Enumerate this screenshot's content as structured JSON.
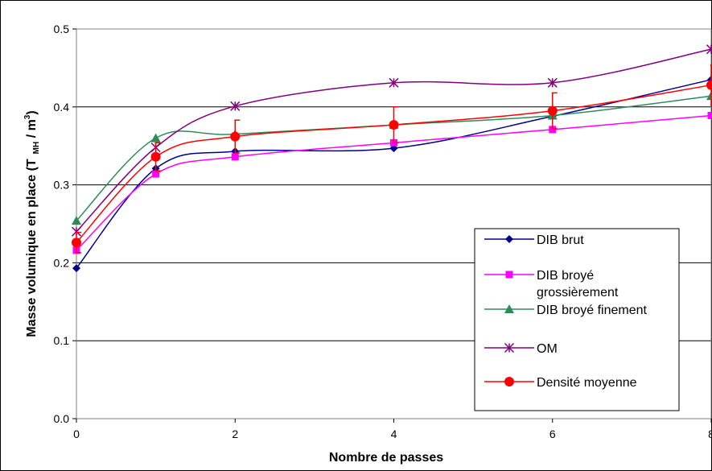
{
  "chart_data": {
    "type": "line",
    "title": "",
    "xlabel": "Nombre de passes",
    "ylabel_main": "Masse volumique en place (T",
    "ylabel_sub": "MH",
    "ylabel_tail": " / m",
    "ylabel_sup": "3",
    "ylabel_close": ")",
    "xlim": [
      0,
      8
    ],
    "ylim": [
      0.0,
      0.5
    ],
    "x_ticks": [
      "0",
      "2",
      "4",
      "6",
      "8"
    ],
    "x_tick_values": [
      0,
      2,
      4,
      6,
      8
    ],
    "y_ticks": [
      "0.0",
      "0.1",
      "0.2",
      "0.3",
      "0.4",
      "0.5"
    ],
    "y_tick_values": [
      0.0,
      0.1,
      0.2,
      0.3,
      0.4,
      0.5
    ],
    "grid": "horizontal",
    "legend_position": "right",
    "x": [
      0,
      1,
      2,
      4,
      6,
      8
    ],
    "series": [
      {
        "name": "DIB brut",
        "color": "#00008B",
        "marker": "diamond",
        "values": [
          0.193,
          0.321,
          0.343,
          0.347,
          0.388,
          0.435
        ]
      },
      {
        "name": "DIB broyé grossièrement",
        "color": "#FF00FF",
        "marker": "square",
        "values": [
          0.216,
          0.314,
          0.336,
          0.354,
          0.371,
          0.389
        ]
      },
      {
        "name": "DIB broyé finement",
        "color": "#2E8B57",
        "marker": "triangle",
        "values": [
          0.254,
          0.36,
          0.365,
          0.377,
          0.389,
          0.414
        ]
      },
      {
        "name": "OM",
        "color": "#800080",
        "marker": "star",
        "values": [
          0.24,
          0.348,
          0.401,
          0.431,
          0.431,
          0.474
        ]
      },
      {
        "name": "Densité moyenne",
        "color": "#FF0000",
        "marker": "circle",
        "values": [
          0.226,
          0.336,
          0.362,
          0.377,
          0.395,
          0.428
        ],
        "error": [
          0.013,
          0.018,
          0.021,
          0.023,
          0.023,
          0.026
        ]
      }
    ]
  },
  "legend": {
    "entries": [
      {
        "line1": "DIB brut",
        "line2": ""
      },
      {
        "line1": "DIB broyé",
        "line2": "grossièrement"
      },
      {
        "line1": "DIB broyé finement",
        "line2": ""
      },
      {
        "line1": "OM",
        "line2": ""
      },
      {
        "line1": "Densité moyenne",
        "line2": ""
      }
    ]
  }
}
